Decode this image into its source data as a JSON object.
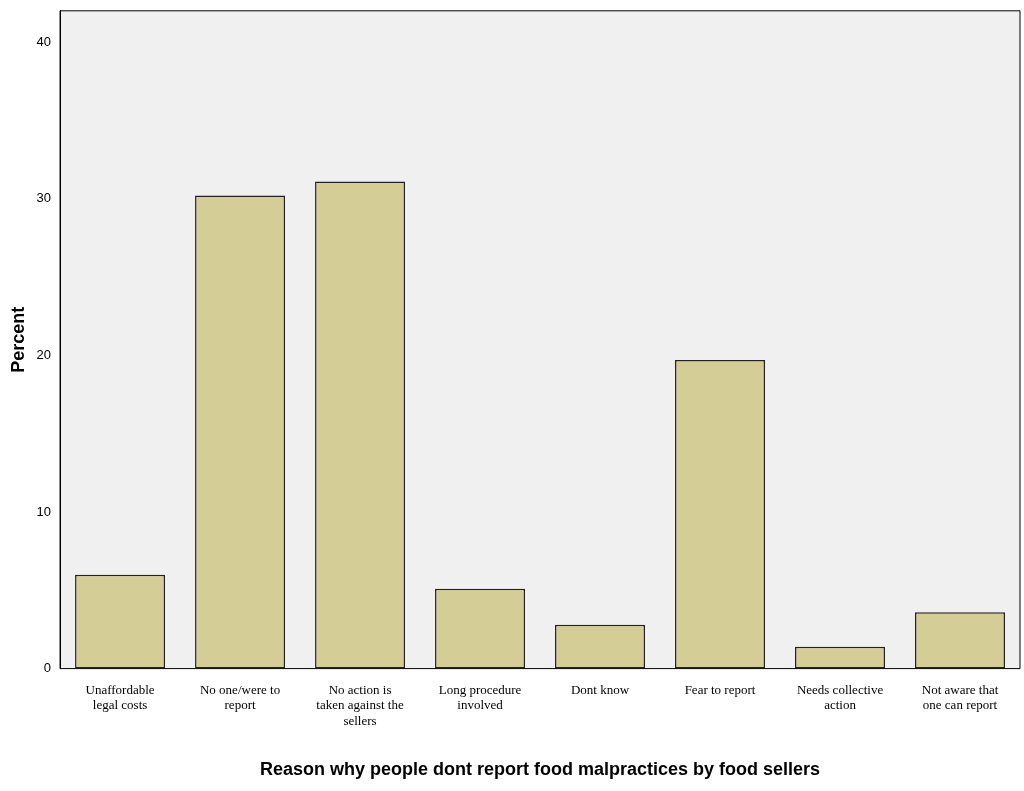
{
  "chart_data": {
    "type": "bar",
    "xlabel": "Reason why people dont report food malpractices by food sellers",
    "ylabel": "Percent",
    "categories": [
      "Unaffordable legal costs",
      "No one/were to report",
      "No action is taken against the sellers",
      "Long procedure involved",
      "Dont know",
      "Fear to report",
      "Needs collective action",
      "Not aware that one can report"
    ],
    "values": [
      6.0,
      30.2,
      31.1,
      5.1,
      2.8,
      19.7,
      1.4,
      3.6
    ],
    "color": "#d4cd96",
    "ylim": [
      0,
      42
    ],
    "yticks": [
      0,
      10,
      20,
      30,
      40
    ],
    "grid": false,
    "legend": false
  }
}
